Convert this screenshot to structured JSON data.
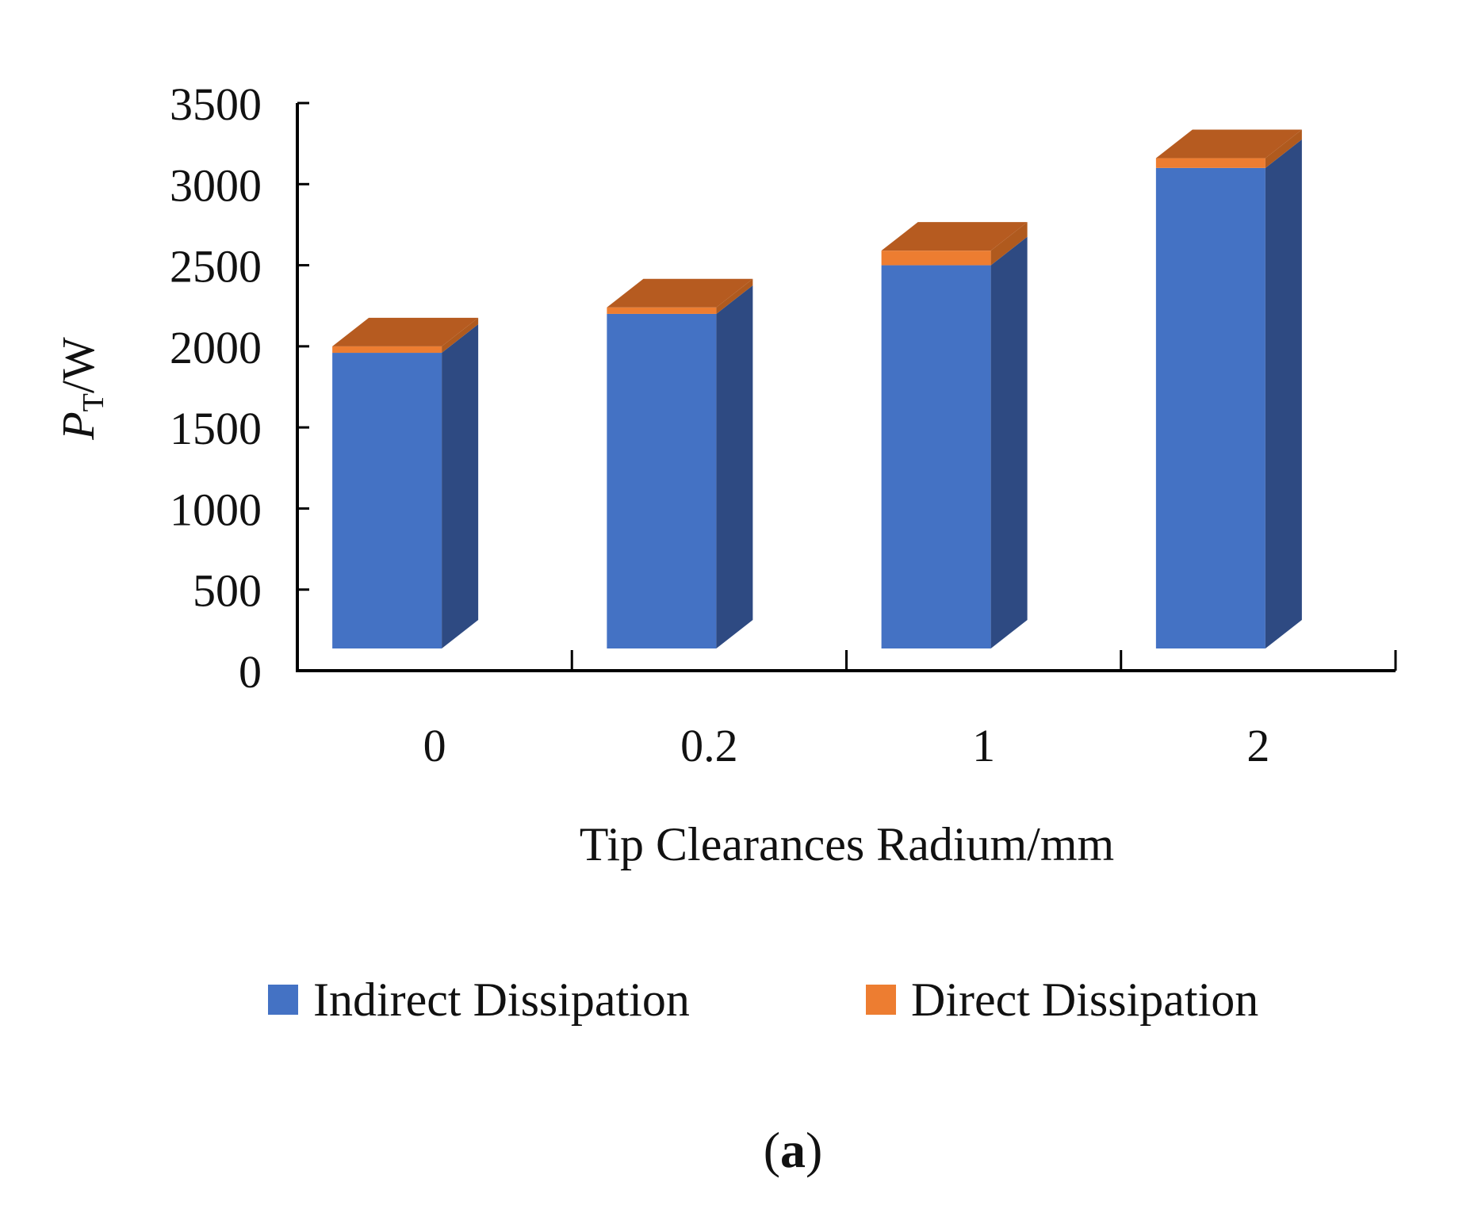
{
  "chart_data": {
    "type": "bar",
    "stacked": true,
    "style": "3d-column",
    "title": "",
    "categories": [
      "0",
      "0.2",
      "1",
      "2"
    ],
    "series": [
      {
        "name": "Indirect Dissipation",
        "values": [
          1960,
          2200,
          2500,
          3100
        ],
        "color": "#4472C4",
        "side_color": "#2E4A82",
        "top_color": "#B65B20"
      },
      {
        "name": "Direct Dissipation",
        "values": [
          40,
          40,
          90,
          60
        ],
        "color": "#ED7D31",
        "side_color": "#B05A1E",
        "top_color": "#B65B20"
      }
    ],
    "xlabel": "Tip Clearances Radium/mm",
    "ylabel": {
      "main": "P",
      "subscript": "T",
      "unit": "/W"
    },
    "ylim": [
      0,
      3500
    ],
    "yticks": [
      "0",
      "500",
      "1000",
      "1500",
      "2000",
      "2500",
      "3000",
      "3500"
    ],
    "grid": false,
    "legend_position": "bottom",
    "panel_label": {
      "open": "(",
      "letter": "a",
      "close": ")"
    }
  }
}
